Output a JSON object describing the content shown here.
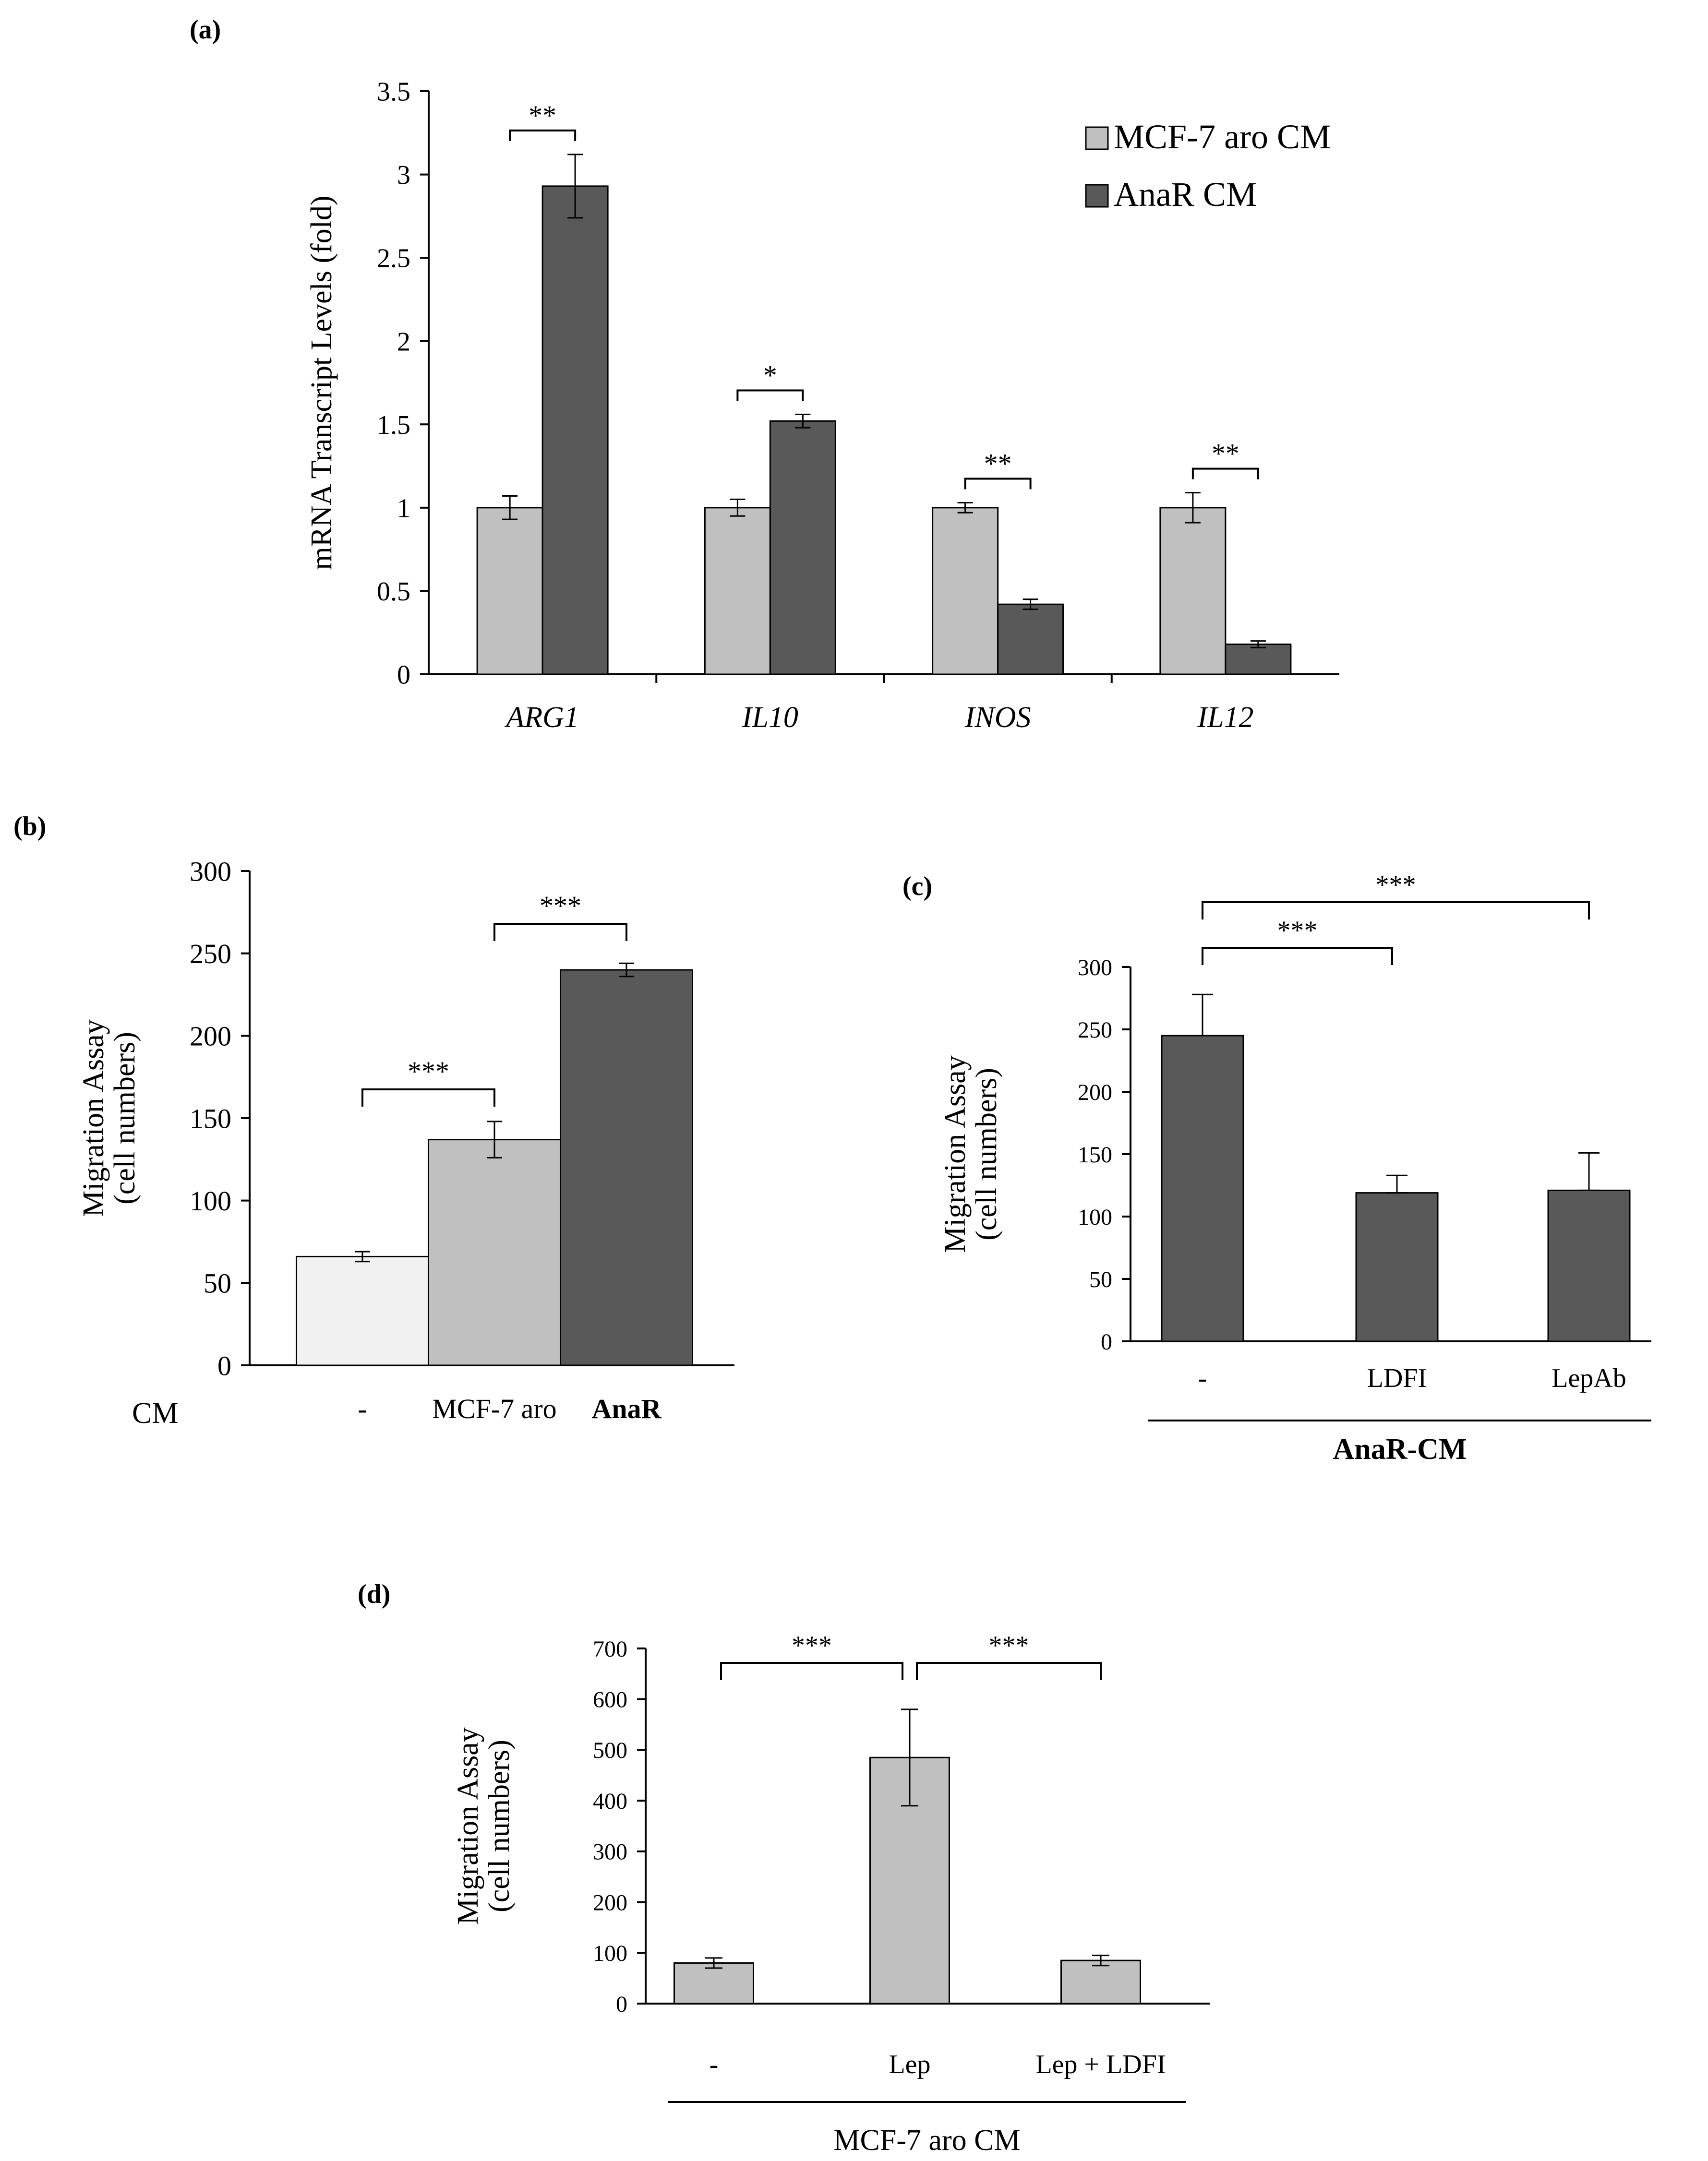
{
  "colors": {
    "light": "#f1f1f1",
    "mid": "#c0c0c0",
    "dark": "#595959",
    "line": "#000000"
  },
  "panels": {
    "a": {
      "label": "(a)"
    },
    "b": {
      "label": "(b)"
    },
    "c": {
      "label": "(c)"
    },
    "d": {
      "label": "(d)"
    }
  },
  "chart_data": [
    {
      "id": "a",
      "type": "bar",
      "ylabel": "mRNA Transcript Levels (fold)",
      "ylim": [
        0,
        3.5
      ],
      "ytick_values": [
        0,
        0.5,
        1,
        1.5,
        2,
        2.5,
        3,
        3.5
      ],
      "ytick_labels": [
        "0",
        "0.5",
        "1",
        "1.5",
        "2",
        "2.5",
        "3",
        "3.5"
      ],
      "categories": [
        "ARG1",
        "IL10",
        "INOS",
        "IL12"
      ],
      "category_style": "italic",
      "series": [
        {
          "name": "MCF-7 aro CM",
          "color": "mid",
          "values": [
            1.0,
            1.0,
            1.0,
            1.0
          ],
          "errors": [
            0.07,
            0.05,
            0.03,
            0.09
          ]
        },
        {
          "name": "AnaR CM",
          "color": "dark",
          "values": [
            2.93,
            1.52,
            0.42,
            0.18
          ],
          "errors": [
            0.19,
            0.04,
            0.03,
            0.02
          ]
        }
      ],
      "legend": [
        "MCF-7 aro CM",
        "AnaR CM"
      ],
      "legend_position": "top-right",
      "significance": [
        "**",
        "*",
        "**",
        "**"
      ]
    },
    {
      "id": "b",
      "type": "bar",
      "ylabel": "Migration Assay",
      "ylabel2": "(cell numbers)",
      "ylim": [
        0,
        300
      ],
      "ytick_values": [
        0,
        50,
        100,
        150,
        200,
        250,
        300
      ],
      "ytick_labels": [
        "0",
        "50",
        "100",
        "150",
        "200",
        "250",
        "300"
      ],
      "x_title": "CM",
      "categories": [
        "-",
        "MCF-7 aro",
        "AnaR"
      ],
      "values": [
        66,
        137,
        240
      ],
      "errors": [
        3,
        11,
        4
      ],
      "colors": [
        "light",
        "mid",
        "dark"
      ],
      "significance": [
        {
          "from": 0,
          "to": 1,
          "label": "***"
        },
        {
          "from": 1,
          "to": 2,
          "label": "***"
        }
      ]
    },
    {
      "id": "c",
      "type": "bar",
      "ylabel": "Migration Assay",
      "ylabel2": "(cell numbers)",
      "ylim": [
        0,
        300
      ],
      "ytick_values": [
        0,
        50,
        100,
        150,
        200,
        250,
        300
      ],
      "ytick_labels": [
        "0",
        "50",
        "100",
        "150",
        "200",
        "250",
        "300"
      ],
      "categories": [
        "-",
        "LDFI",
        "LepAb"
      ],
      "values": [
        245,
        119,
        121
      ],
      "errors": [
        33,
        14,
        30
      ],
      "group_label": "AnaR-CM",
      "significance": [
        {
          "from": 0,
          "to": 1,
          "label": "***"
        },
        {
          "from": 0,
          "to": 2,
          "label": "***"
        }
      ]
    },
    {
      "id": "d",
      "type": "bar",
      "ylabel": "Migration Assay",
      "ylabel2": "(cell numbers)",
      "ylim": [
        0,
        700
      ],
      "ytick_values": [
        0,
        100,
        200,
        300,
        400,
        500,
        600,
        700
      ],
      "ytick_labels": [
        "0",
        "100",
        "200",
        "300",
        "400",
        "500",
        "600",
        "700"
      ],
      "categories": [
        "-",
        "Lep",
        "Lep + LDFI"
      ],
      "values": [
        80,
        485,
        85
      ],
      "errors": [
        10,
        95,
        10
      ],
      "group_label": "MCF-7 aro CM",
      "significance": [
        {
          "from": 0,
          "to": 1,
          "label": "***"
        },
        {
          "from": 1,
          "to": 2,
          "label": "***"
        }
      ]
    }
  ]
}
